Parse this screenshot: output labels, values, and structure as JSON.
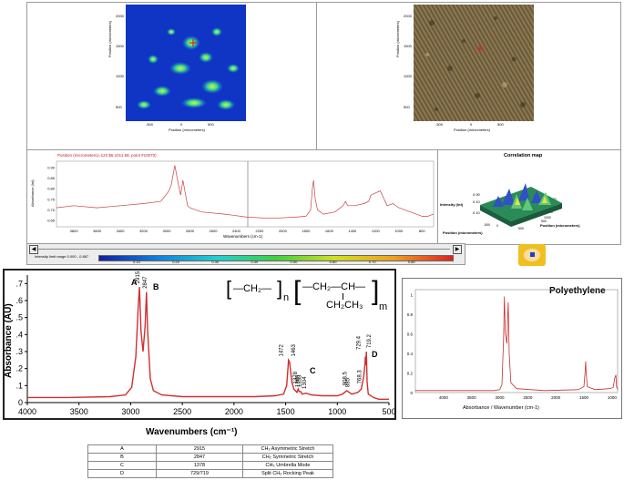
{
  "top": {
    "chemical_map": {
      "x_axis": "Position (micrometers)",
      "y_axis": "Position (micrometers)",
      "x_ticks": [
        "-500",
        "0",
        "500"
      ],
      "y_ticks": [
        "2000",
        "1500",
        "1000",
        "500"
      ]
    },
    "visible_image": {
      "x_axis": "Position (micrometers)",
      "y_axis": "Position (micrometers)",
      "x_ticks": [
        "-500",
        "0",
        "500"
      ],
      "y_ticks": [
        "2000",
        "1500",
        "1000",
        "500"
      ]
    },
    "spectrum": {
      "header": "Position (micrometers)=123 $6,1011.58, point #10070)",
      "y_axis": "Absorbance (Int)",
      "y_ticks": [
        "0.90",
        "0.85",
        "0.80",
        "0.75",
        "0.70",
        "0.65"
      ],
      "x_axis": "Wavenumbers (cm-1)",
      "x_ticks": [
        "3800",
        "3600",
        "3400",
        "3200",
        "3000",
        "2800",
        "2600",
        "2400",
        "2200",
        "2000",
        "1800",
        "1600",
        "1400",
        "1200",
        "1000",
        "800"
      ]
    },
    "correlation": {
      "title": "Correlation map",
      "z_label": "Intensity (Int)",
      "z_ticks": [
        "0.90",
        "0.10",
        "0.10"
      ],
      "x_label": "Position (micrometers)",
      "y_label": "Position (micrometers)",
      "x_ticks": [
        "-500",
        "0",
        "500"
      ],
      "y_ticks": [
        "2500",
        "2000",
        "1500",
        "1000",
        "500"
      ]
    },
    "colorbar": {
      "label": "Intensity limit range 0.000 - 0.867",
      "ticks": [
        "0.10",
        "0.20",
        "0.30",
        "0.40",
        "0.50",
        "0.60",
        "0.70",
        "0.80"
      ]
    }
  },
  "main_chart": {
    "ylabel": "Absorbance (AU)",
    "xlabel": "Wavenumbers (cm⁻¹)",
    "y_ticks": [
      ".7",
      ".6",
      ".5",
      ".4",
      ".3",
      ".2",
      ".1",
      "0"
    ],
    "x_ticks": [
      "4000",
      "3500",
      "3000",
      "2500",
      "2000",
      "1500",
      "1000",
      "500"
    ],
    "formula": {
      "unit1": "—CH₂—",
      "n": "n",
      "unit2_top": "—CH₂—CH—",
      "unit2_bottom": "CH₂CH₃",
      "m": "m"
    },
    "peak_letters": [
      "A",
      "B",
      "C",
      "D"
    ],
    "peak_numbers": [
      "2915",
      "2847",
      "1472",
      "1463",
      "1378",
      "1368",
      "1353",
      "1304",
      "908.5",
      "885",
      "729.4",
      "719.2",
      "768.3"
    ]
  },
  "polyethylene": {
    "title": "Polyethylene",
    "y_ticks": [
      "1",
      "0.8",
      "0.6",
      "0.4",
      "0.2",
      "0"
    ],
    "x_ticks": [
      "4000",
      "3500",
      "3000",
      "2500",
      "2000",
      "1500",
      "1000"
    ],
    "xlabel": "Absorbance / Wavenumber (cm-1)"
  },
  "peak_table": [
    {
      "label": "A",
      "value": "2915",
      "assignment": "CH₂ Asymmetric Stretch"
    },
    {
      "label": "B",
      "value": "2847",
      "assignment": "CH₂ Symmetric Stretch"
    },
    {
      "label": "C",
      "value": "1378",
      "assignment": "CH₃ Umbrella Mode"
    },
    {
      "label": "D",
      "value": "729/719",
      "assignment": "Split CH₂ Rocking Peak"
    }
  ],
  "chart_data": [
    {
      "type": "line",
      "title": "",
      "xlabel": "Wavenumbers (cm⁻¹)",
      "ylabel": "Absorbance (AU)",
      "xlim": [
        4000,
        500
      ],
      "ylim": [
        0,
        0.75
      ],
      "grid": false,
      "series": [
        {
          "x": [
            4000,
            3600,
            3200,
            3050,
            2990,
            2950,
            2925,
            2915,
            2900,
            2880,
            2860,
            2847,
            2835,
            2810,
            2780,
            2700,
            2500,
            2200,
            2000,
            1800,
            1600,
            1520,
            1490,
            1478,
            1472,
            1463,
            1455,
            1440,
            1420,
            1390,
            1378,
            1368,
            1353,
            1340,
            1304,
            1250,
            1150,
            1050,
            1000,
            950,
            908,
            885,
            860,
            800,
            768,
            745,
            732,
            729,
            725,
            719,
            712,
            700,
            650,
            600,
            550,
            500
          ],
          "y": [
            0.03,
            0.03,
            0.035,
            0.045,
            0.09,
            0.27,
            0.58,
            0.68,
            0.42,
            0.3,
            0.45,
            0.65,
            0.42,
            0.14,
            0.07,
            0.045,
            0.035,
            0.035,
            0.035,
            0.035,
            0.04,
            0.05,
            0.1,
            0.2,
            0.25,
            0.24,
            0.2,
            0.12,
            0.08,
            0.06,
            0.08,
            0.065,
            0.065,
            0.05,
            0.055,
            0.045,
            0.04,
            0.04,
            0.04,
            0.05,
            0.07,
            0.06,
            0.05,
            0.06,
            0.08,
            0.15,
            0.23,
            0.27,
            0.22,
            0.3,
            0.12,
            0.05,
            0.03,
            0.02,
            0.02,
            0.02
          ]
        }
      ]
    },
    {
      "type": "line",
      "title": "Polyethylene",
      "xlabel": "Absorbance / Wavenumber (cm-1)",
      "xlim": [
        4500,
        900
      ],
      "ylim": [
        0,
        1.05
      ],
      "grid": false,
      "series": [
        {
          "x": [
            4500,
            3500,
            3100,
            3000,
            2960,
            2930,
            2915,
            2900,
            2870,
            2855,
            2847,
            2830,
            2800,
            2700,
            2200,
            1600,
            1500,
            1480,
            1470,
            1460,
            1440,
            1300,
            1050,
            980,
            950,
            930,
            920,
            900
          ],
          "y": [
            0.02,
            0.02,
            0.02,
            0.03,
            0.08,
            0.55,
            0.98,
            0.6,
            0.5,
            0.8,
            0.92,
            0.4,
            0.1,
            0.04,
            0.02,
            0.03,
            0.06,
            0.2,
            0.32,
            0.2,
            0.06,
            0.03,
            0.04,
            0.05,
            0.15,
            0.18,
            0.06,
            0.03
          ]
        }
      ]
    },
    {
      "type": "line",
      "title": "",
      "xlabel": "Wavenumbers (cm-1)",
      "ylabel": "Absorbance (Int)",
      "xlim": [
        3950,
        700
      ],
      "ylim": [
        0.62,
        0.93
      ],
      "grid": false,
      "series": [
        {
          "x": [
            3950,
            3800,
            3600,
            3400,
            3200,
            3050,
            2980,
            2960,
            2930,
            2900,
            2880,
            2860,
            2850,
            2820,
            2800,
            2700,
            2500,
            2300,
            2100,
            1900,
            1800,
            1760,
            1745,
            1735,
            1720,
            1700,
            1650,
            1550,
            1480,
            1460,
            1440,
            1380,
            1300,
            1260,
            1240,
            1200,
            1160,
            1100,
            1050,
            1000,
            950,
            900,
            850,
            800,
            750,
            700
          ],
          "y": [
            0.71,
            0.72,
            0.71,
            0.72,
            0.73,
            0.74,
            0.79,
            0.82,
            0.91,
            0.82,
            0.77,
            0.84,
            0.81,
            0.72,
            0.71,
            0.69,
            0.68,
            0.665,
            0.66,
            0.665,
            0.67,
            0.7,
            0.8,
            0.84,
            0.75,
            0.7,
            0.68,
            0.69,
            0.72,
            0.74,
            0.72,
            0.72,
            0.73,
            0.74,
            0.77,
            0.78,
            0.79,
            0.72,
            0.73,
            0.71,
            0.7,
            0.69,
            0.68,
            0.67,
            0.67,
            0.68
          ]
        }
      ]
    }
  ]
}
